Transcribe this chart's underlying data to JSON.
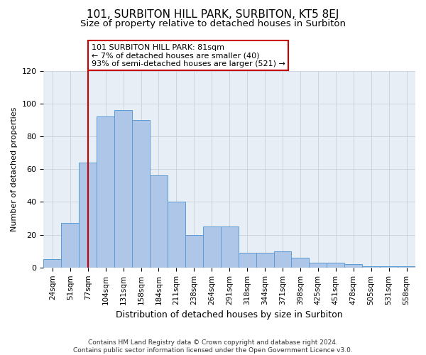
{
  "title": "101, SURBITON HILL PARK, SURBITON, KT5 8EJ",
  "subtitle": "Size of property relative to detached houses in Surbiton",
  "xlabel": "Distribution of detached houses by size in Surbiton",
  "ylabel": "Number of detached properties",
  "categories": [
    "24sqm",
    "51sqm",
    "77sqm",
    "104sqm",
    "131sqm",
    "158sqm",
    "184sqm",
    "211sqm",
    "238sqm",
    "264sqm",
    "291sqm",
    "318sqm",
    "344sqm",
    "371sqm",
    "398sqm",
    "425sqm",
    "451sqm",
    "478sqm",
    "505sqm",
    "531sqm",
    "558sqm"
  ],
  "values": [
    5,
    27,
    64,
    92,
    96,
    90,
    56,
    40,
    20,
    25,
    25,
    9,
    9,
    10,
    6,
    3,
    3,
    2,
    1,
    1,
    1
  ],
  "bar_color": "#AEC6E8",
  "bar_edge_color": "#5B9BD5",
  "vline_x_index": 2,
  "vline_color": "#CC0000",
  "annotation_text": "101 SURBITON HILL PARK: 81sqm\n← 7% of detached houses are smaller (40)\n93% of semi-detached houses are larger (521) →",
  "annotation_box_color": "#FFFFFF",
  "annotation_box_edge_color": "#CC0000",
  "ylim": [
    0,
    120
  ],
  "yticks": [
    0,
    20,
    40,
    60,
    80,
    100,
    120
  ],
  "grid_color": "#C8D0DC",
  "bg_color": "#E8EEF5",
  "footer": "Contains HM Land Registry data © Crown copyright and database right 2024.\nContains public sector information licensed under the Open Government Licence v3.0.",
  "title_fontsize": 11,
  "subtitle_fontsize": 9.5,
  "xlabel_fontsize": 9,
  "ylabel_fontsize": 8,
  "tick_fontsize": 7.5,
  "annotation_fontsize": 8,
  "footer_fontsize": 6.5
}
